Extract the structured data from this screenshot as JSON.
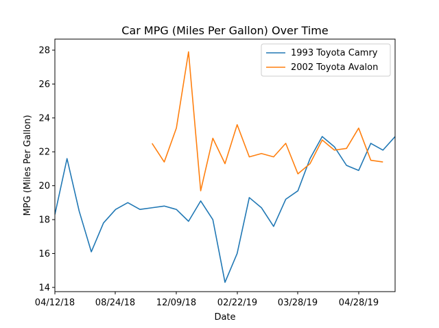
{
  "chart_data": {
    "type": "line",
    "title": "Car MPG (Miles Per Gallon) Over Time",
    "xlabel": "Date",
    "ylabel": "MPG (Miles Per Gallon)",
    "ylim": [
      13.75,
      28.65
    ],
    "xticks": [
      "04/12/18",
      "08/24/18",
      "12/09/18",
      "02/22/19",
      "03/28/19",
      "04/28/19"
    ],
    "yticks": [
      14,
      16,
      18,
      20,
      22,
      24,
      26,
      28
    ],
    "legend_position": "top-right",
    "grid": false,
    "series": [
      {
        "name": "1993 Toyota Camry",
        "color": "#1f77b4",
        "points": [
          [
            0,
            18.3
          ],
          [
            1,
            21.6
          ],
          [
            2,
            18.5
          ],
          [
            3,
            16.1
          ],
          [
            4,
            17.8
          ],
          [
            5,
            18.6
          ],
          [
            6,
            19.0
          ],
          [
            7,
            18.6
          ],
          [
            8,
            18.7
          ],
          [
            9,
            18.8
          ],
          [
            10,
            18.6
          ],
          [
            11,
            17.9
          ],
          [
            12,
            19.1
          ],
          [
            13,
            18.0
          ],
          [
            14,
            14.3
          ],
          [
            15,
            16.0
          ],
          [
            16,
            19.3
          ],
          [
            17,
            18.7
          ],
          [
            18,
            17.6
          ],
          [
            19,
            19.2
          ],
          [
            20,
            19.7
          ],
          [
            21,
            21.6
          ],
          [
            22,
            22.9
          ],
          [
            23,
            22.3
          ],
          [
            24,
            21.2
          ],
          [
            25,
            20.9
          ],
          [
            26,
            22.5
          ],
          [
            27,
            22.1
          ],
          [
            28,
            22.9
          ]
        ]
      },
      {
        "name": "2002 Toyota Avalon",
        "color": "#ff7f0e",
        "points": [
          [
            8,
            22.5
          ],
          [
            9,
            21.4
          ],
          [
            10,
            23.4
          ],
          [
            11,
            27.9
          ],
          [
            12,
            19.7
          ],
          [
            13,
            22.8
          ],
          [
            14,
            21.3
          ],
          [
            15,
            23.6
          ],
          [
            16,
            21.7
          ],
          [
            17,
            21.9
          ],
          [
            18,
            21.7
          ],
          [
            19,
            22.5
          ],
          [
            20,
            20.7
          ],
          [
            21,
            21.3
          ],
          [
            22,
            22.7
          ],
          [
            23,
            22.1
          ],
          [
            24,
            22.2
          ],
          [
            25,
            23.4
          ],
          [
            26,
            21.5
          ],
          [
            27,
            21.4
          ]
        ]
      }
    ]
  }
}
